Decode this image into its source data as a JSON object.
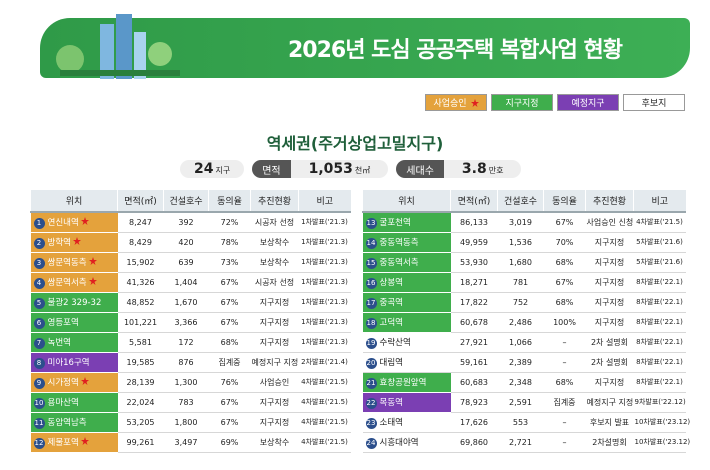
{
  "header": {
    "title": "2026년 도심 공공주택 복합사업 현황"
  },
  "legend": [
    {
      "label": "사업승인",
      "color": "#e4a23c",
      "star": true
    },
    {
      "label": "지구지정",
      "color": "#3fae4c",
      "star": false
    },
    {
      "label": "예정지구",
      "color": "#7b3fb3",
      "star": false
    },
    {
      "label": "후보지",
      "color": "#ffffff",
      "star": false
    }
  ],
  "subtitle": "역세권(주거상업고밀지구)",
  "stats": {
    "districts": {
      "value": "24",
      "unit": "지구"
    },
    "area": {
      "label": "면적",
      "value": "1,053",
      "unit": "천㎡"
    },
    "households": {
      "label": "세대수",
      "value": "3.8",
      "unit": "만호"
    }
  },
  "table": {
    "columns": [
      "위치",
      "면적(㎡)",
      "건설호수",
      "동의율",
      "추진현황",
      "비고"
    ],
    "left": [
      {
        "no": "1",
        "name": "연신내역",
        "color": "#e4a23c",
        "star": true,
        "cells": [
          "8,247",
          "392",
          "72%",
          "시공자 선정",
          "1차발표('21.3)"
        ]
      },
      {
        "no": "2",
        "name": "방학역",
        "color": "#e4a23c",
        "star": true,
        "cells": [
          "8,429",
          "420",
          "78%",
          "보상착수",
          "1차발표('21.3)"
        ]
      },
      {
        "no": "3",
        "name": "쌍문역동측",
        "color": "#e4a23c",
        "star": true,
        "cells": [
          "15,902",
          "639",
          "73%",
          "보상착수",
          "1차발표('21.3)"
        ]
      },
      {
        "no": "4",
        "name": "쌍문역서측",
        "color": "#e4a23c",
        "star": true,
        "cells": [
          "41,326",
          "1,404",
          "67%",
          "시공자 선정",
          "1차발표('21.3)"
        ]
      },
      {
        "no": "5",
        "name": "불광2 329-32",
        "color": "#3fae4c",
        "star": false,
        "cells": [
          "48,852",
          "1,670",
          "67%",
          "지구지정",
          "1차발표('21.3)"
        ]
      },
      {
        "no": "6",
        "name": "영등포역",
        "color": "#3fae4c",
        "star": false,
        "cells": [
          "101,221",
          "3,366",
          "67%",
          "지구지정",
          "1차발표('21.3)"
        ]
      },
      {
        "no": "7",
        "name": "녹번역",
        "color": "#3fae4c",
        "star": false,
        "cells": [
          "5,581",
          "172",
          "68%",
          "지구지정",
          "1차발표('21.3)"
        ]
      },
      {
        "no": "8",
        "name": "미아16구역",
        "color": "#7b3fb3",
        "star": false,
        "cells": [
          "19,585",
          "876",
          "집계중",
          "예정지구 지정",
          "2차발표('21.4)"
        ]
      },
      {
        "no": "9",
        "name": "시가정역",
        "color": "#e4a23c",
        "star": true,
        "cells": [
          "28,139",
          "1,300",
          "76%",
          "사업승인",
          "4차발표('21.5)"
        ]
      },
      {
        "no": "10",
        "name": "용마산역",
        "color": "#3fae4c",
        "star": false,
        "cells": [
          "22,024",
          "783",
          "67%",
          "지구지정",
          "4차발표('21.5)"
        ]
      },
      {
        "no": "11",
        "name": "동암역남측",
        "color": "#3fae4c",
        "star": false,
        "cells": [
          "53,205",
          "1,800",
          "67%",
          "지구지정",
          "4차발표('21.5)"
        ]
      },
      {
        "no": "12",
        "name": "제물포역",
        "color": "#e4a23c",
        "star": true,
        "cells": [
          "99,261",
          "3,497",
          "69%",
          "보상착수",
          "4차발표('21.5)"
        ]
      }
    ],
    "right": [
      {
        "no": "13",
        "name": "굴포천역",
        "color": "#3fae4c",
        "star": false,
        "cells": [
          "86,133",
          "3,019",
          "67%",
          "사업승인 신청",
          "4차발표('21.5)"
        ]
      },
      {
        "no": "14",
        "name": "중동역동측",
        "color": "#3fae4c",
        "star": false,
        "cells": [
          "49,959",
          "1,536",
          "70%",
          "지구지정",
          "5차발표('21.6)"
        ]
      },
      {
        "no": "15",
        "name": "중동역서측",
        "color": "#3fae4c",
        "star": false,
        "cells": [
          "53,930",
          "1,680",
          "68%",
          "지구지정",
          "5차발표('21.6)"
        ]
      },
      {
        "no": "16",
        "name": "상봉역",
        "color": "#3fae4c",
        "star": false,
        "cells": [
          "18,271",
          "781",
          "67%",
          "지구지정",
          "8차발표('22.1)"
        ]
      },
      {
        "no": "17",
        "name": "중곡역",
        "color": "#3fae4c",
        "star": false,
        "cells": [
          "17,822",
          "752",
          "68%",
          "지구지정",
          "8차발표('22.1)"
        ]
      },
      {
        "no": "18",
        "name": "고덕역",
        "color": "#3fae4c",
        "star": false,
        "cells": [
          "60,678",
          "2,486",
          "100%",
          "지구지정",
          "8차발표('22.1)"
        ]
      },
      {
        "no": "19",
        "name": "수락산역",
        "color": "#ffffff",
        "star": false,
        "cells": [
          "27,921",
          "1,066",
          "–",
          "2차 설명회",
          "8차발표('22.1)"
        ]
      },
      {
        "no": "20",
        "name": "대림역",
        "color": "#ffffff",
        "star": false,
        "cells": [
          "59,161",
          "2,389",
          "–",
          "2차 설명회",
          "8차발표('22.1)"
        ]
      },
      {
        "no": "21",
        "name": "효창공원앞역",
        "color": "#3fae4c",
        "star": false,
        "cells": [
          "60,683",
          "2,348",
          "68%",
          "지구지정",
          "8차발표('22.1)"
        ]
      },
      {
        "no": "22",
        "name": "목동역",
        "color": "#7b3fb3",
        "star": false,
        "cells": [
          "78,923",
          "2,591",
          "집계중",
          "예정지구 지정",
          "9차발표('22.12)"
        ]
      },
      {
        "no": "23",
        "name": "소태역",
        "color": "#ffffff",
        "star": false,
        "cells": [
          "17,626",
          "553",
          "–",
          "후보지 발표",
          "10차발표('23.12)"
        ]
      },
      {
        "no": "24",
        "name": "시흥대야역",
        "color": "#ffffff",
        "star": false,
        "cells": [
          "69,860",
          "2,721",
          "–",
          "2차설명회",
          "10차발표('23.12)"
        ]
      }
    ]
  }
}
